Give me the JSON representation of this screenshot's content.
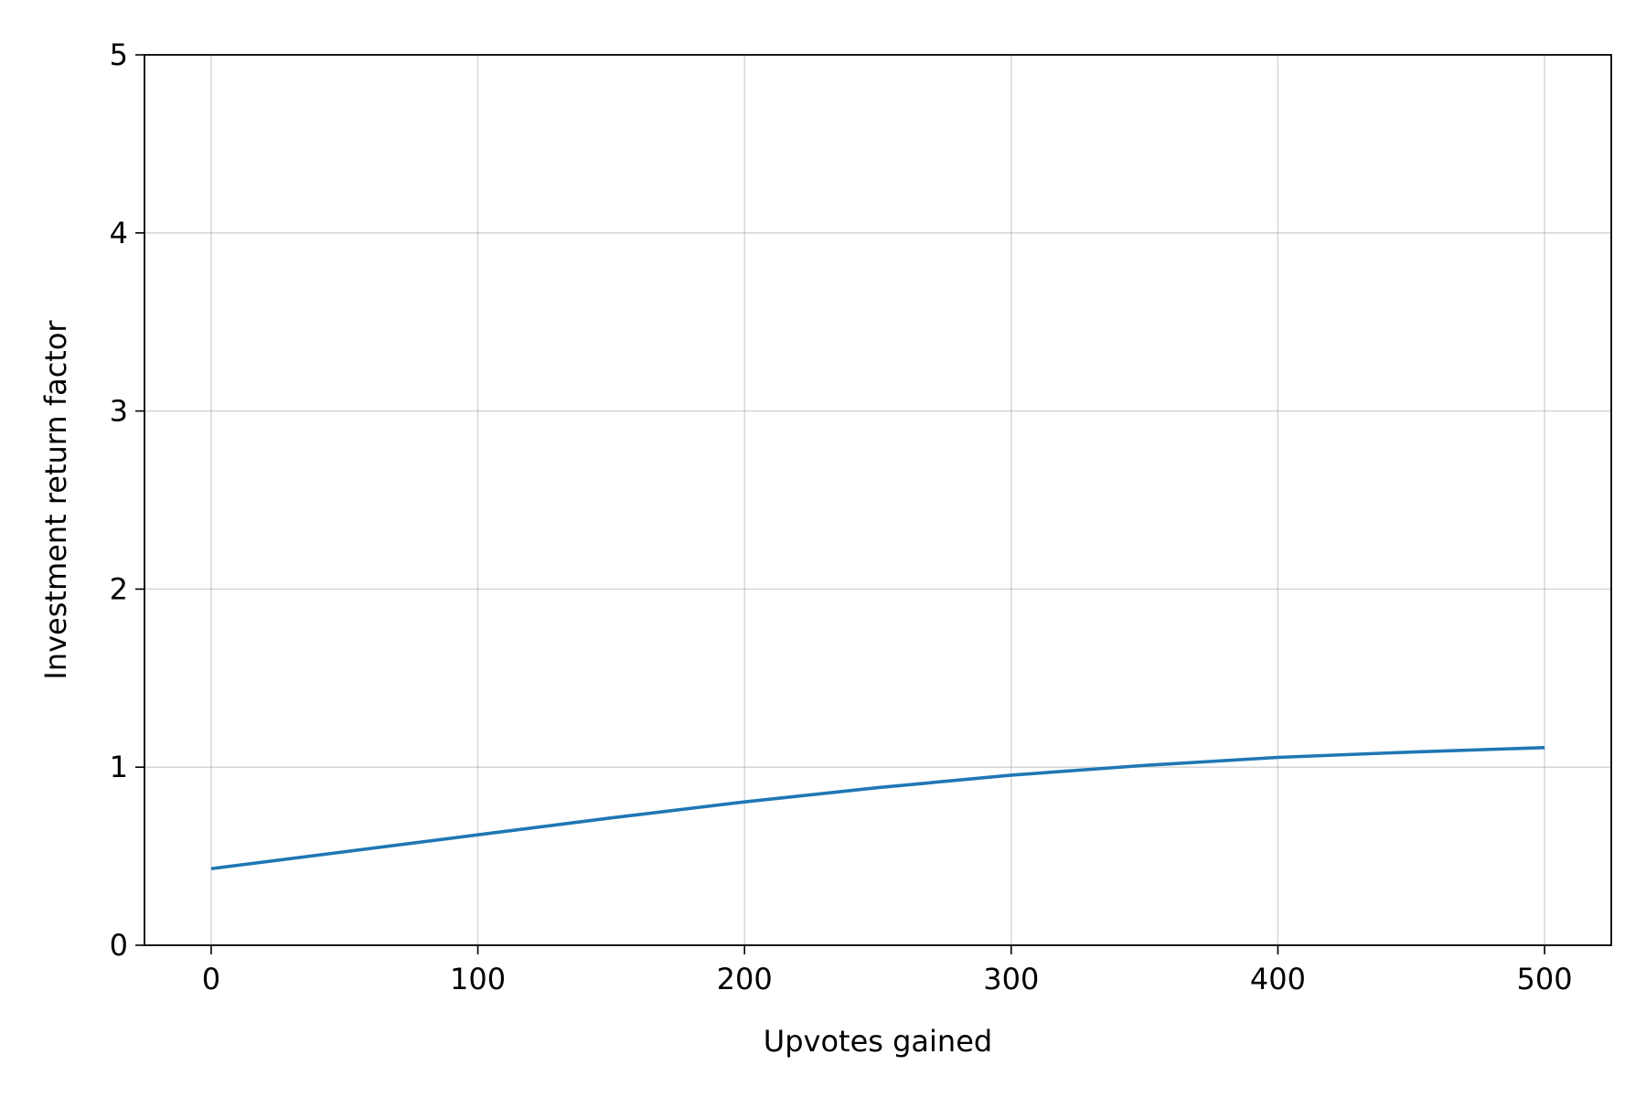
{
  "chart_data": {
    "type": "line",
    "title": "",
    "xlabel": "Upvotes gained",
    "ylabel": "Investment return factor",
    "xlim": [
      -25,
      525
    ],
    "ylim": [
      0,
      5
    ],
    "xticks": [
      0,
      100,
      200,
      300,
      400,
      500
    ],
    "yticks": [
      0,
      1,
      2,
      3,
      4,
      5
    ],
    "grid": true,
    "legend": "none",
    "series": [
      {
        "color": "#1f77b4",
        "x": [
          0,
          50,
          100,
          150,
          200,
          250,
          300,
          350,
          400,
          450,
          500
        ],
        "y": [
          0.43,
          0.525,
          0.62,
          0.715,
          0.805,
          0.885,
          0.955,
          1.01,
          1.055,
          1.085,
          1.11
        ]
      }
    ]
  }
}
